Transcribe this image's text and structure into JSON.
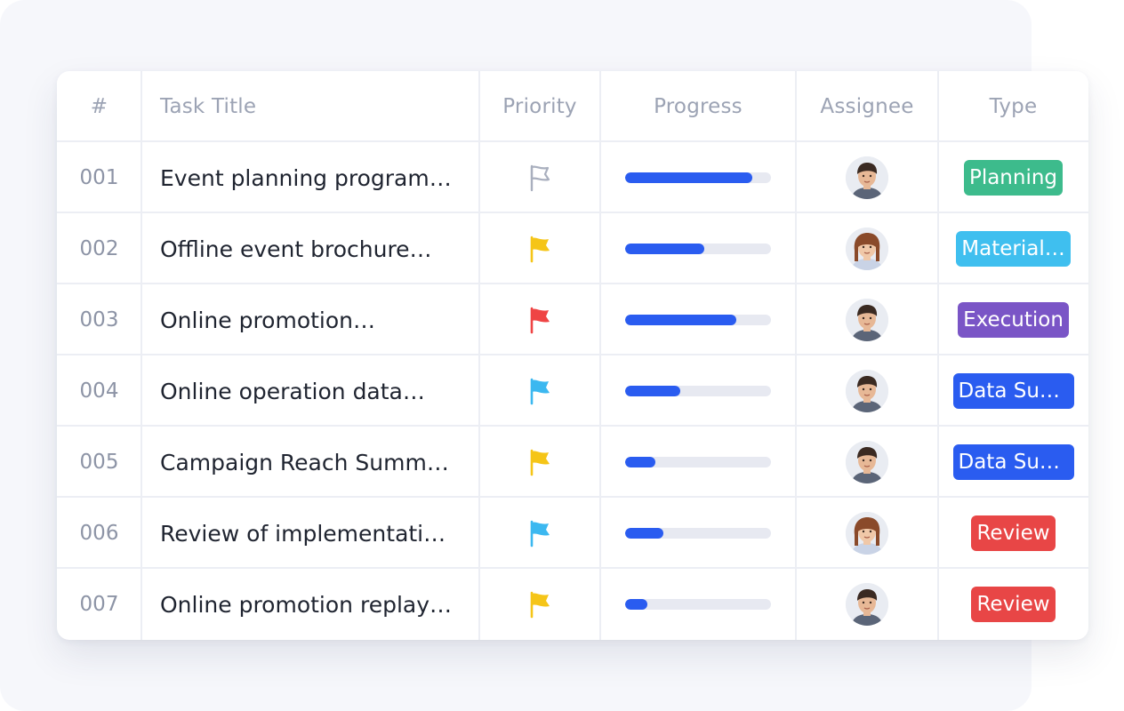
{
  "table": {
    "headers": {
      "num": "#",
      "title": "Task Title",
      "priority": "Priority",
      "progress": "Progress",
      "assignee": "Assignee",
      "type": "Type"
    },
    "rows": [
      {
        "num": "001",
        "title": "Event planning program…",
        "priority": "none",
        "priority_color": "#a9afbe",
        "progress": 0.87,
        "avatar": "avatar-man-1",
        "type": "Planning",
        "type_color": "#3dbb8c"
      },
      {
        "num": "002",
        "title": "Offline event brochure…",
        "priority": "medium",
        "priority_color": "#f5c518",
        "progress": 0.54,
        "avatar": "avatar-woman-1",
        "type": "Material…",
        "type_color": "#3fbfef"
      },
      {
        "num": "003",
        "title": "Online promotion…",
        "priority": "high",
        "priority_color": "#ef4444",
        "progress": 0.76,
        "avatar": "avatar-man-2",
        "type": "Execution",
        "type_color": "#7a55c6"
      },
      {
        "num": "004",
        "title": "Online operation data…",
        "priority": "low",
        "priority_color": "#3cb8f0",
        "progress": 0.38,
        "avatar": "avatar-man-3",
        "type": "Data Sum…",
        "type_color": "#2a5cf0"
      },
      {
        "num": "005",
        "title": "Campaign Reach Summ…",
        "priority": "medium",
        "priority_color": "#f5c518",
        "progress": 0.21,
        "avatar": "avatar-man-4",
        "type": "Data Sum…",
        "type_color": "#2a5cf0"
      },
      {
        "num": "006",
        "title": "Review of implementati…",
        "priority": "low",
        "priority_color": "#3cb8f0",
        "progress": 0.26,
        "avatar": "avatar-woman-2",
        "type": "Review",
        "type_color": "#e84646"
      },
      {
        "num": "007",
        "title": "Online promotion replay…",
        "priority": "medium",
        "priority_color": "#f5c518",
        "progress": 0.15,
        "avatar": "avatar-man-5",
        "type": "Review",
        "type_color": "#e84646"
      }
    ]
  }
}
